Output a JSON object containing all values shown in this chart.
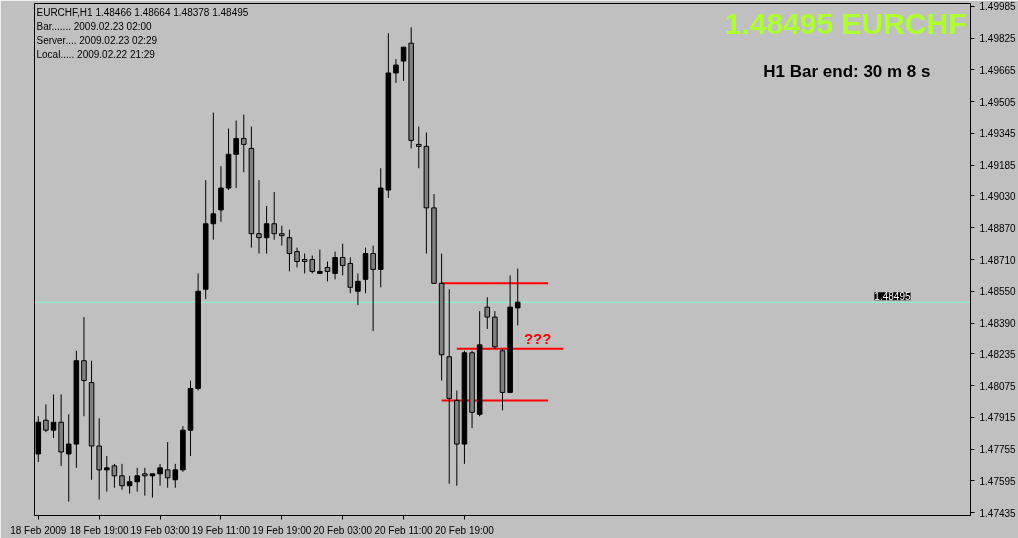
{
  "chart_data": {
    "type": "candlestick",
    "title": "EURCHF,H1  1.48466 1.48664 1.48378 1.48495",
    "annotations": [
      "Bar....... 2009.02.23 02:00",
      "Server.... 2009.02.23 02:29",
      "Local..... 2009.02.22 21:29",
      "1.48495 EURCHF",
      "H1 Bar end: 30 m 8 s",
      "???"
    ],
    "categories": [
      "18 Feb 2009",
      null,
      null,
      null,
      null,
      null,
      null,
      null,
      "18 Feb 19:00",
      null,
      null,
      null,
      null,
      null,
      null,
      null,
      "19 Feb 03:00",
      null,
      null,
      null,
      null,
      null,
      null,
      null,
      "19 Feb 11:00",
      null,
      null,
      null,
      null,
      null,
      null,
      null,
      "19 Feb 19:00",
      null,
      null,
      null,
      null,
      null,
      null,
      null,
      "20 Feb 03:00",
      null,
      null,
      null,
      null,
      null,
      null,
      null,
      "20 Feb 11:00",
      null,
      null,
      null,
      null,
      null,
      null,
      null,
      "20 Feb 19:00",
      null,
      null,
      null,
      null,
      null,
      null,
      null,
      null,
      null,
      null,
      null,
      null,
      null,
      null,
      null,
      null,
      null,
      null,
      null,
      null,
      null,
      null,
      null,
      null,
      null,
      null,
      null,
      null,
      null,
      null,
      null,
      null,
      null,
      null,
      null,
      null,
      null,
      null,
      null,
      null,
      null,
      null,
      null,
      null,
      null,
      null,
      null,
      null,
      null,
      null,
      null,
      null,
      null,
      null,
      null,
      null,
      null,
      null,
      null,
      null,
      null,
      null,
      null,
      null,
      null,
      null
    ],
    "ohlc": [
      [
        1.4773,
        1.4792,
        1.4769,
        1.4789
      ],
      [
        1.479,
        1.4798,
        1.4784,
        1.4785
      ],
      [
        1.4785,
        1.4803,
        1.4781,
        1.4789
      ],
      [
        1.4789,
        1.4803,
        1.4767,
        1.4774
      ],
      [
        1.4773,
        1.4793,
        1.4749,
        1.4778
      ],
      [
        1.4778,
        1.4825,
        1.4766,
        1.482
      ],
      [
        1.482,
        1.4842,
        1.4792,
        1.481
      ],
      [
        1.4809,
        1.482,
        1.476,
        1.4777
      ],
      [
        1.4777,
        1.4791,
        1.475,
        1.4765
      ],
      [
        1.4765,
        1.4772,
        1.4754,
        1.4766
      ],
      [
        1.4767,
        1.4768,
        1.4756,
        1.4762
      ],
      [
        1.4762,
        1.4768,
        1.4755,
        1.4757
      ],
      [
        1.4757,
        1.4762,
        1.4753,
        1.4759
      ],
      [
        1.4759,
        1.4766,
        1.4754,
        1.4762
      ],
      [
        1.4763,
        1.4766,
        1.4752,
        1.4762
      ],
      [
        1.4762,
        1.4763,
        1.4751,
        1.4763
      ],
      [
        1.4763,
        1.4768,
        1.4757,
        1.4766
      ],
      [
        1.4765,
        1.4779,
        1.4756,
        1.4761
      ],
      [
        1.476,
        1.4768,
        1.4756,
        1.4765
      ],
      [
        1.4765,
        1.4787,
        1.4764,
        1.4785
      ],
      [
        1.4785,
        1.481,
        1.4772,
        1.4806
      ],
      [
        1.4806,
        1.4864,
        1.4805,
        1.4855
      ],
      [
        1.4856,
        1.4911,
        1.4851,
        1.4889
      ],
      [
        1.4889,
        1.4945,
        1.4881,
        1.4894
      ],
      [
        1.4896,
        1.4918,
        1.489,
        1.4907
      ],
      [
        1.4907,
        1.4937,
        1.4906,
        1.4924
      ],
      [
        1.4924,
        1.4941,
        1.4907,
        1.4932
      ],
      [
        1.4932,
        1.4944,
        1.4915,
        1.4929
      ],
      [
        1.4927,
        1.4938,
        1.4877,
        1.4884
      ],
      [
        1.4884,
        1.4911,
        1.4874,
        1.4882
      ],
      [
        1.4882,
        1.4898,
        1.4874,
        1.4889
      ],
      [
        1.4889,
        1.4905,
        1.4881,
        1.4884
      ],
      [
        1.4884,
        1.4888,
        1.4878,
        1.4883
      ],
      [
        1.4882,
        1.4886,
        1.4865,
        1.4874
      ],
      [
        1.4875,
        1.4877,
        1.4867,
        1.487
      ],
      [
        1.4871,
        1.4874,
        1.4864,
        1.487
      ],
      [
        1.4871,
        1.4873,
        1.4864,
        1.4865
      ],
      [
        1.4864,
        1.4876,
        1.4864,
        1.4865
      ],
      [
        1.4867,
        1.487,
        1.486,
        1.4865
      ],
      [
        1.4864,
        1.4875,
        1.4861,
        1.4872
      ],
      [
        1.4872,
        1.4879,
        1.4863,
        1.4868
      ],
      [
        1.4869,
        1.4872,
        1.4854,
        1.4857
      ],
      [
        1.4855,
        1.4864,
        1.4848,
        1.486
      ],
      [
        1.4861,
        1.4877,
        1.4854,
        1.4874
      ],
      [
        1.4874,
        1.4878,
        1.4835,
        1.4866
      ],
      [
        1.4866,
        1.4917,
        1.4857,
        1.4907
      ],
      [
        1.4906,
        1.4985,
        1.4902,
        1.4965
      ],
      [
        1.4965,
        1.4972,
        1.496,
        1.4969
      ],
      [
        1.4971,
        1.4978,
        1.4961,
        1.4978
      ],
      [
        1.498,
        1.4988,
        1.4927,
        1.4931
      ],
      [
        1.4929,
        1.4938,
        1.4917,
        1.4928
      ],
      [
        1.4928,
        1.4935,
        1.4874,
        1.4897
      ],
      [
        1.4897,
        1.4904,
        1.4859,
        1.4859
      ],
      [
        1.4859,
        1.4874,
        1.481,
        1.4823
      ],
      [
        1.4822,
        1.4856,
        1.4758,
        1.4801
      ],
      [
        1.48,
        1.4805,
        1.4757,
        1.4778
      ],
      [
        1.4778,
        1.4825,
        1.4768,
        1.4824
      ],
      [
        1.4824,
        1.4825,
        1.4786,
        1.4794
      ],
      [
        1.4793,
        1.4845,
        1.4792,
        1.4828
      ],
      [
        1.4847,
        1.4852,
        1.4836,
        1.4842
      ],
      [
        1.4842,
        1.4845,
        1.4826,
        1.4827
      ],
      [
        1.4825,
        1.4826,
        1.4795,
        1.4804
      ],
      [
        1.4804,
        1.4863,
        1.4804,
        1.4847
      ],
      [
        1.48466,
        1.48664,
        1.48378,
        1.48495
      ],
      null,
      null,
      null,
      null,
      null,
      null,
      null,
      null,
      null,
      null,
      null,
      null,
      null,
      null,
      null,
      null,
      null,
      null,
      null,
      null,
      null,
      null,
      null,
      null,
      null,
      null,
      null,
      null,
      null,
      null,
      null,
      null,
      null,
      null,
      null,
      null,
      null,
      null,
      null,
      null,
      null,
      null,
      null,
      null,
      null,
      null,
      null,
      null,
      null,
      null,
      null,
      null,
      null,
      null,
      null,
      null,
      null,
      null,
      null
    ],
    "colors": [
      "#000000",
      "#808080",
      "#000000",
      "#808080",
      "#000000",
      "#000000",
      "#808080",
      "#808080",
      "#808080",
      "#000000",
      "#808080",
      "#808080",
      "#000000",
      "#000000",
      "#808080",
      "#000000",
      "#000000",
      "#808080",
      "#000000",
      "#000000",
      "#000000",
      "#000000",
      "#000000",
      "#000000",
      "#000000",
      "#000000",
      "#000000",
      "#808080",
      "#808080",
      "#808080",
      "#000000",
      "#808080",
      "#808080",
      "#808080",
      "#808080",
      "#808080",
      "#808080",
      "#000000",
      "#808080",
      "#000000",
      "#808080",
      "#808080",
      "#000000",
      "#000000",
      "#808080",
      "#000000",
      "#000000",
      "#000000",
      "#000000",
      "#808080",
      "#808080",
      "#808080",
      "#808080",
      "#808080",
      "#808080",
      "#808080",
      "#000000",
      "#808080",
      "#000000",
      "#808080",
      "#808080",
      "#808080",
      "#000000",
      "#000000",
      null,
      null,
      null,
      null,
      null,
      null,
      null,
      null,
      null,
      null,
      null,
      null,
      null,
      null,
      null,
      null,
      null,
      null,
      null,
      null,
      null,
      null,
      null,
      null,
      null,
      null,
      null,
      null,
      null,
      null,
      null,
      null,
      null,
      null,
      null,
      null,
      null,
      null,
      null,
      null,
      null,
      null,
      null,
      null,
      null,
      null,
      null,
      null,
      null,
      null,
      null,
      null,
      null,
      null,
      null,
      null,
      null,
      null,
      null
    ],
    "series": [
      {
        "type": "line",
        "color": "#ff0000",
        "values": [
          null,
          null,
          null,
          null,
          null,
          null,
          null,
          null,
          null,
          null,
          null,
          null,
          null,
          null,
          null,
          null,
          null,
          null,
          null,
          null,
          null,
          null,
          null,
          null,
          null,
          null,
          null,
          null,
          null,
          null,
          null,
          null,
          null,
          null,
          null,
          null,
          null,
          null,
          null,
          null,
          null,
          null,
          null,
          null,
          null,
          null,
          null,
          null,
          null,
          null,
          null,
          null,
          null,
          1.4859,
          1.4859,
          1.4859,
          1.4859,
          1.4859,
          1.4859,
          1.4859,
          1.4859,
          1.4859,
          1.4859,
          1.4859,
          1.4859,
          1.4859,
          1.4859,
          1.4859,
          null,
          null,
          null,
          null,
          null,
          null,
          null,
          null,
          null,
          null,
          null,
          null,
          null,
          null,
          null,
          null,
          null,
          null,
          null,
          null,
          null,
          null,
          null,
          null,
          null,
          null,
          null,
          null,
          null,
          null,
          null,
          null,
          null,
          null,
          null,
          null,
          null,
          null,
          null,
          null,
          null,
          null,
          null,
          null,
          null,
          null,
          null,
          null,
          null,
          null,
          null,
          null,
          null,
          null,
          null
        ]
      },
      {
        "type": "line",
        "color": "#ff0000",
        "values": [
          null,
          null,
          null,
          null,
          null,
          null,
          null,
          null,
          null,
          null,
          null,
          null,
          null,
          null,
          null,
          null,
          null,
          null,
          null,
          null,
          null,
          null,
          null,
          null,
          null,
          null,
          null,
          null,
          null,
          null,
          null,
          null,
          null,
          null,
          null,
          null,
          null,
          null,
          null,
          null,
          null,
          null,
          null,
          null,
          null,
          null,
          null,
          null,
          null,
          null,
          null,
          null,
          null,
          null,
          null,
          1.4826,
          1.4826,
          1.4826,
          1.4826,
          1.4826,
          1.4826,
          1.4826,
          1.4826,
          1.4826,
          1.4826,
          1.4826,
          1.4826,
          1.4826,
          1.4826,
          1.4826,
          null,
          null,
          null,
          null,
          null,
          null,
          null,
          null,
          null,
          null,
          null,
          null,
          null,
          null,
          null,
          null,
          null,
          null,
          null,
          null,
          null,
          null,
          null,
          null,
          null,
          null,
          null,
          null,
          null,
          null,
          null,
          null,
          null,
          null,
          null,
          null,
          null,
          null,
          null,
          null,
          null,
          null,
          null,
          null,
          null,
          null,
          null,
          null,
          null,
          null,
          null,
          null,
          null
        ]
      },
      {
        "type": "line",
        "color": "#ff0000",
        "values": [
          null,
          null,
          null,
          null,
          null,
          null,
          null,
          null,
          null,
          null,
          null,
          null,
          null,
          null,
          null,
          null,
          null,
          null,
          null,
          null,
          null,
          null,
          null,
          null,
          null,
          null,
          null,
          null,
          null,
          null,
          null,
          null,
          null,
          null,
          null,
          null,
          null,
          null,
          null,
          null,
          null,
          null,
          null,
          null,
          null,
          null,
          null,
          null,
          null,
          null,
          null,
          null,
          null,
          1.48,
          1.48,
          1.48,
          1.48,
          1.48,
          1.48,
          1.48,
          1.48,
          1.48,
          1.48,
          1.48,
          1.48,
          1.48,
          1.48,
          1.48,
          null,
          null,
          null,
          null,
          null,
          null,
          null,
          null,
          null,
          null,
          null,
          null,
          null,
          null,
          null,
          null,
          null,
          null,
          null,
          null,
          null,
          null,
          null,
          null,
          null,
          null,
          null,
          null,
          null,
          null,
          null,
          null,
          null,
          null,
          null,
          null,
          null,
          null,
          null,
          null,
          null,
          null,
          null,
          null,
          null,
          null,
          null,
          null,
          null,
          null,
          null,
          null,
          null,
          null,
          null
        ]
      }
    ],
    "ref_lines": [
      {
        "axis": "y",
        "value": 1.48495,
        "label": "1.48495",
        "color": "#7fffd4"
      }
    ],
    "ylim": [
      1.4742,
      1.5
    ],
    "yticks": [
      {
        "value": 1.49985,
        "label": "1.49985"
      },
      {
        "value": 1.49825,
        "label": "1.49825"
      },
      {
        "value": 1.49665,
        "label": "1.49665"
      },
      {
        "value": 1.49505,
        "label": "1.49505"
      },
      {
        "value": 1.49345,
        "label": "1.49345"
      },
      {
        "value": 1.49185,
        "label": "1.49185"
      },
      {
        "value": 1.4903,
        "label": "1.49030"
      },
      {
        "value": 1.4887,
        "label": "1.48870"
      },
      {
        "value": 1.4871,
        "label": "1.48710"
      },
      {
        "value": 1.4855,
        "label": "1.48550"
      },
      {
        "value": 1.4839,
        "label": "1.48390"
      },
      {
        "value": 1.48235,
        "label": "1.48235"
      },
      {
        "value": 1.48075,
        "label": "1.48075"
      },
      {
        "value": 1.47915,
        "label": "1.47915"
      },
      {
        "value": 1.47755,
        "label": "1.47755"
      },
      {
        "value": 1.47595,
        "label": "1.47595"
      },
      {
        "value": 1.47435,
        "label": "1.47435"
      }
    ],
    "grid": false
  }
}
